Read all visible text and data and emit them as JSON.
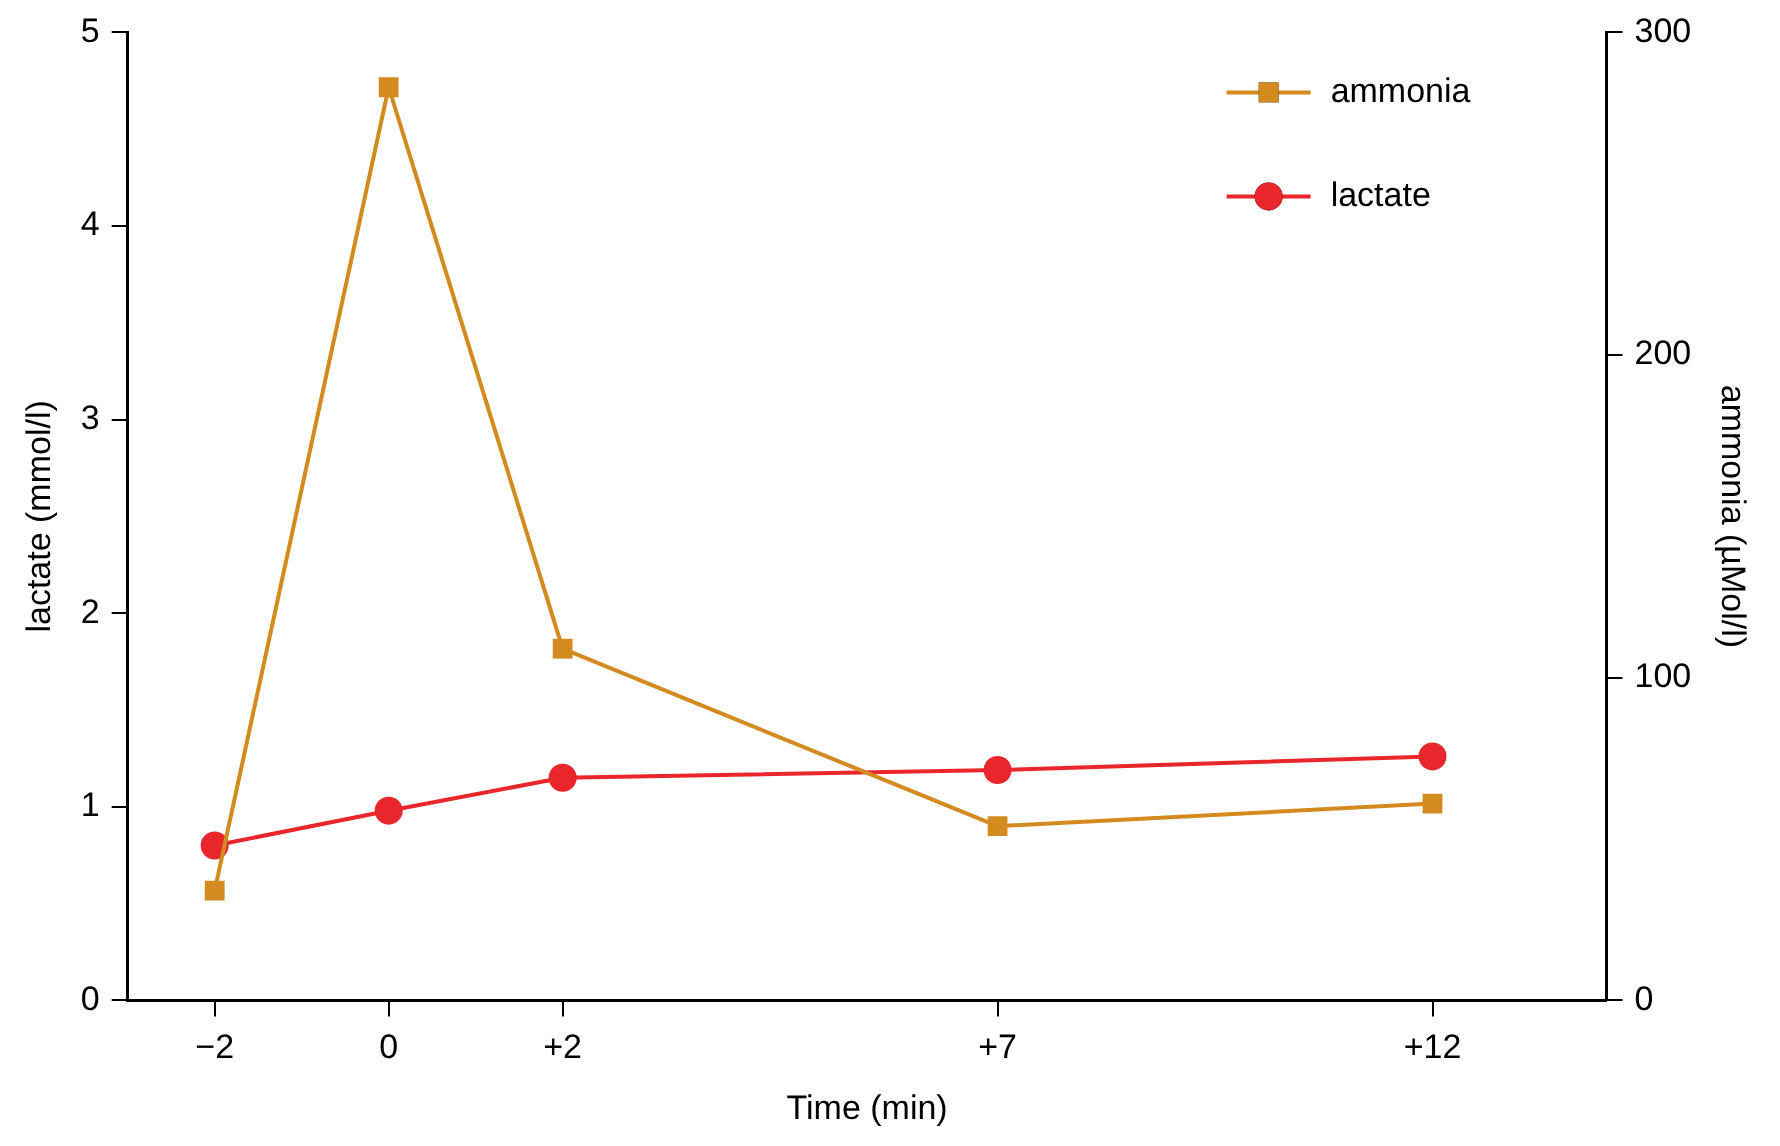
{
  "chart_data": {
    "type": "line",
    "xlabel": "Time (min)",
    "ylabel": "lactate (mmol/l)",
    "y2label": "ammonia (µMol/l)",
    "x": [
      -2,
      0,
      2,
      7,
      12
    ],
    "xlim": [
      -3,
      14
    ],
    "xticks": [
      {
        "value": -2,
        "label": "−2"
      },
      0,
      {
        "value": 2,
        "label": "+2"
      },
      {
        "value": 7,
        "label": "+7"
      },
      {
        "value": 12,
        "label": "+12"
      }
    ],
    "ylim": [
      0,
      5
    ],
    "yticks": [
      0,
      1,
      2,
      3,
      4,
      5
    ],
    "y2lim": [
      0,
      300
    ],
    "y2ticks": [
      0,
      100,
      200,
      300
    ],
    "series": [
      {
        "name": "ammonia",
        "color": "#d38a1f",
        "values": [
          34,
          283,
          109,
          54,
          61
        ],
        "axis": "y2",
        "marker": "square"
      },
      {
        "name": "lactate",
        "color": "#e8262b",
        "values": [
          0.8,
          0.98,
          1.15,
          1.19,
          1.26
        ],
        "axis": "y",
        "marker": "circle"
      }
    ],
    "legend": "top right",
    "grid": false,
    "line_style": "solid"
  }
}
